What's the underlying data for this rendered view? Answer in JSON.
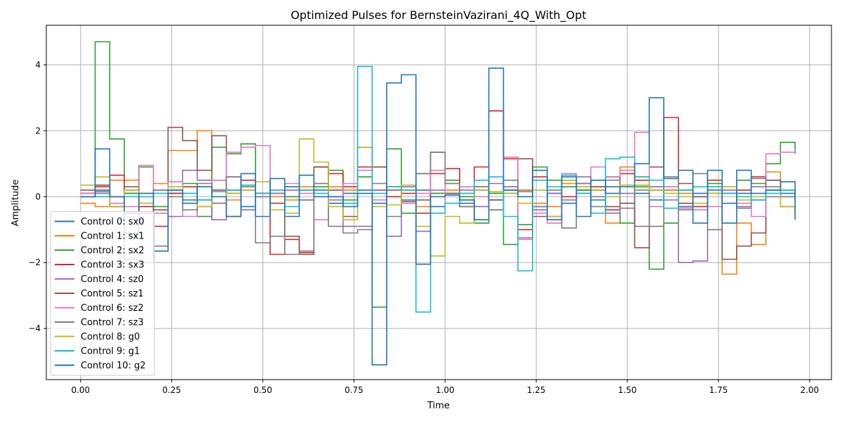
{
  "chart_data": {
    "type": "line",
    "step": true,
    "title": "Optimized Pulses for BernsteinVazirani_4Q_With_Opt",
    "xlabel": "Time",
    "ylabel": "Amplitude",
    "xlim": [
      -0.094,
      2.06
    ],
    "ylim": [
      -5.55,
      5.2
    ],
    "xticks": [
      0.0,
      0.25,
      0.5,
      0.75,
      1.0,
      1.25,
      1.5,
      1.75,
      2.0
    ],
    "xtick_labels": [
      "0.00",
      "0.25",
      "0.50",
      "0.75",
      "1.00",
      "1.25",
      "1.50",
      "1.75",
      "2.00"
    ],
    "yticks": [
      -4,
      -2,
      0,
      2,
      4
    ],
    "ytick_labels": [
      "−4",
      "−2",
      "0",
      "2",
      "4"
    ],
    "grid": true,
    "legend_position": "lower-left",
    "x": [
      0.0,
      0.04,
      0.08,
      0.12,
      0.16,
      0.2,
      0.24,
      0.28,
      0.32,
      0.36,
      0.4,
      0.44,
      0.48,
      0.52,
      0.56,
      0.6,
      0.64,
      0.68,
      0.72,
      0.76,
      0.8,
      0.84,
      0.88,
      0.92,
      0.96,
      1.0,
      1.04,
      1.08,
      1.12,
      1.16,
      1.2,
      1.24,
      1.28,
      1.32,
      1.36,
      1.4,
      1.44,
      1.48,
      1.52,
      1.56,
      1.6,
      1.64,
      1.68,
      1.72,
      1.76,
      1.8,
      1.84,
      1.88,
      1.92,
      1.96
    ],
    "series": [
      {
        "name": "Control 0: sx0",
        "color": "#1f77b4",
        "values": [
          0.1,
          0.2,
          -0.3,
          0.1,
          -0.2,
          0.2,
          0.1,
          -0.1,
          0.3,
          -0.2,
          0.2,
          -0.3,
          0.1,
          -0.2,
          0.3,
          -0.1,
          0.2,
          -0.2,
          0.1,
          0.2,
          -0.2,
          0.3,
          -0.1,
          0.2,
          -0.3,
          0.1,
          -0.2,
          0.2,
          -0.1,
          0.1,
          0.2,
          -0.3,
          0.1,
          -0.2,
          0.2,
          -0.1,
          0.3,
          -0.2,
          0.1,
          -0.1,
          0.2,
          -0.3,
          0.1,
          0.2,
          -0.2,
          0.1,
          -0.1,
          0.2,
          0.1,
          -0.1
        ]
      },
      {
        "name": "Control 1: sx1",
        "color": "#ff7f0e",
        "values": [
          -0.2,
          -0.3,
          0.5,
          0.5,
          0.1,
          0.4,
          1.4,
          1.4,
          2.0,
          0.5,
          -0.1,
          0.2,
          0.1,
          0.0,
          -0.1,
          0.3,
          0.4,
          0.3,
          0.2,
          1.5,
          0.9,
          0.0,
          -0.2,
          -0.3,
          0.1,
          0.2,
          0.1,
          0.3,
          0.1,
          0.2,
          0.2,
          -0.2,
          -0.3,
          0.4,
          0.1,
          0.2,
          -0.8,
          0.9,
          0.6,
          0.3,
          0.2,
          0.1,
          0.0,
          0.3,
          -2.35,
          -0.8,
          -1.45,
          0.75,
          0.2,
          -0.1
        ]
      },
      {
        "name": "Control 2: sx2",
        "color": "#2ca02c",
        "values": [
          0.0,
          4.7,
          1.75,
          0.1,
          0.9,
          -0.3,
          0.2,
          0.4,
          -0.6,
          1.5,
          1.3,
          1.6,
          0.0,
          0.1,
          0.0,
          0.2,
          0.3,
          0.8,
          -0.1,
          0.6,
          -3.35,
          1.45,
          -0.5,
          0.7,
          0.1,
          0.5,
          0.0,
          -0.8,
          0.1,
          -1.45,
          -0.85,
          0.9,
          0.5,
          0.3,
          0.2,
          0.5,
          0.6,
          -0.8,
          0.3,
          -2.2,
          -0.8,
          0.2,
          0.0,
          0.4,
          0.3,
          0.5,
          0.4,
          1.0,
          1.65,
          1.3
        ]
      },
      {
        "name": "Control 3: sx3",
        "color": "#d62728",
        "values": [
          0.1,
          0.3,
          0.65,
          -0.5,
          -0.3,
          -0.9,
          0.1,
          0.3,
          -0.1,
          0.2,
          -0.6,
          0.5,
          0.1,
          -1.75,
          -1.3,
          -1.7,
          0.9,
          0.7,
          0.3,
          0.9,
          0.2,
          0.0,
          0.1,
          -0.5,
          0.7,
          0.85,
          -0.3,
          0.9,
          2.6,
          1.15,
          -1.0,
          0.6,
          -0.6,
          0.0,
          0.4,
          0.3,
          -0.4,
          0.7,
          0.5,
          0.2,
          2.4,
          -0.2,
          -0.3,
          0.5,
          0.1,
          0.2,
          0.6,
          0.5,
          0.0,
          0.1
        ]
      },
      {
        "name": "Control 4: sz0",
        "color": "#9467bd",
        "values": [
          0.0,
          0.1,
          -0.3,
          -1.9,
          -2.0,
          -1.5,
          -0.6,
          0.8,
          0.5,
          -0.7,
          0.6,
          -0.4,
          0.0,
          0.1,
          0.2,
          -0.1,
          0.0,
          -0.1,
          -0.9,
          -0.9,
          0.2,
          -1.2,
          0.3,
          -1.05,
          0.2,
          0.4,
          0.2,
          -0.3,
          0.4,
          0.3,
          -1.25,
          -0.4,
          0.1,
          -0.1,
          0.4,
          0.0,
          -0.5,
          0.1,
          -0.9,
          0.3,
          -0.1,
          -2.0,
          -1.95,
          -1.0,
          0.2,
          -0.3,
          0.3,
          0.0,
          0.2,
          0.0
        ]
      },
      {
        "name": "Control 5: sz1",
        "color": "#8c564b",
        "values": [
          0.2,
          0.35,
          0.0,
          0.3,
          0.0,
          -0.4,
          2.1,
          1.7,
          0.8,
          1.85,
          0.1,
          0.3,
          0.1,
          -0.2,
          -1.2,
          -1.75,
          0.9,
          0.2,
          -0.6,
          1.5,
          0.9,
          0.2,
          -0.15,
          -0.1,
          1.35,
          0.1,
          -0.1,
          0.3,
          -0.1,
          0.2,
          1.15,
          -0.6,
          -0.7,
          0.5,
          0.3,
          0.2,
          -0.3,
          -0.2,
          -1.55,
          0.9,
          0.3,
          0.4,
          0.0,
          0.1,
          -1.9,
          -1.5,
          -1.1,
          0.5,
          -0.3,
          -0.5
        ]
      },
      {
        "name": "Control 6: sz2",
        "color": "#e377c2",
        "values": [
          0.1,
          0.0,
          -0.2,
          -0.3,
          0.95,
          -0.5,
          0.45,
          -0.6,
          -0.3,
          0.5,
          1.35,
          1.5,
          1.55,
          0.2,
          0.4,
          0.1,
          -0.7,
          0.0,
          0.4,
          0.8,
          -0.1,
          0.3,
          -0.2,
          0.1,
          0.8,
          -0.2,
          0.3,
          0.0,
          -0.4,
          1.2,
          -1.3,
          -0.5,
          -0.8,
          0.7,
          0.1,
          0.9,
          0.6,
          0.8,
          1.95,
          -0.3,
          0.3,
          -0.35,
          -0.4,
          -0.3,
          0.1,
          -0.2,
          -0.6,
          1.3,
          1.35,
          1.4
        ]
      },
      {
        "name": "Control 7: sz3",
        "color": "#7f7f7f",
        "values": [
          0.0,
          0.15,
          0.0,
          0.2,
          -0.5,
          0.2,
          0.0,
          -0.4,
          0.4,
          -0.2,
          0.6,
          0.3,
          -1.4,
          -1.2,
          -1.75,
          -1.65,
          0.4,
          -0.9,
          -1.1,
          -1.0,
          0.4,
          -0.6,
          0.2,
          0.7,
          1.35,
          0.4,
          -0.3,
          0.3,
          -0.4,
          0.5,
          0.15,
          -0.3,
          0.2,
          -0.95,
          0.6,
          -0.3,
          0.5,
          -0.35,
          0.2,
          -0.9,
          0.6,
          -0.4,
          0.7,
          -1.0,
          0.1,
          -0.35,
          0.55,
          0.3,
          0.0,
          0.1
        ]
      },
      {
        "name": "Control 8: g0",
        "color": "#bcbd22",
        "values": [
          0.35,
          0.6,
          -0.3,
          0.2,
          -0.2,
          0.1,
          0.3,
          0.1,
          -0.3,
          0.0,
          0.1,
          0.2,
          0.45,
          -0.4,
          -0.5,
          1.75,
          1.05,
          -0.3,
          -0.7,
          1.5,
          -0.3,
          -0.25,
          0.35,
          -0.9,
          -1.8,
          -0.6,
          -0.8,
          0.2,
          0.15,
          0.1,
          -0.2,
          0.2,
          -0.6,
          0.5,
          0.3,
          0.2,
          0.0,
          0.35,
          0.35,
          0.2,
          0.1,
          0.0,
          -0.2,
          0.1,
          0.3,
          -0.1,
          0.0,
          0.2,
          -0.3,
          0.0
        ]
      },
      {
        "name": "Control 9: g1",
        "color": "#17becf",
        "values": [
          0.0,
          0.0,
          0.0,
          0.0,
          0.0,
          0.1,
          0.2,
          0.1,
          -0.1,
          0.15,
          0.2,
          0.35,
          0.1,
          0.2,
          -0.3,
          0.2,
          0.1,
          0.0,
          -0.2,
          3.95,
          0.1,
          0.3,
          0.2,
          -3.5,
          -0.5,
          -0.2,
          0.1,
          0.5,
          0.6,
          -0.6,
          -2.25,
          0.5,
          0.3,
          0.65,
          0.1,
          -0.5,
          1.15,
          1.2,
          0.6,
          0.5,
          -0.35,
          0.2,
          0.3,
          0.3,
          0.1,
          0.0,
          -0.1,
          0.1,
          0.2,
          0.1
        ]
      },
      {
        "name": "Control 10: g2",
        "color": "#1f77b4",
        "values": [
          0.0,
          1.45,
          0.0,
          -1.1,
          0.1,
          -1.65,
          0.2,
          -0.2,
          0.3,
          0.0,
          -0.6,
          0.7,
          -0.6,
          0.55,
          -0.6,
          0.65,
          0.0,
          0.0,
          -0.3,
          0.1,
          -5.1,
          3.45,
          3.7,
          -2.05,
          0.0,
          0.05,
          -0.1,
          -0.7,
          3.9,
          0.2,
          0.0,
          0.8,
          -0.7,
          0.6,
          -0.6,
          0.5,
          0.1,
          0.3,
          1.0,
          3.0,
          0.55,
          0.8,
          -0.8,
          0.8,
          -0.8,
          0.8,
          0.1,
          0.2,
          0.45,
          -0.7
        ]
      }
    ]
  }
}
